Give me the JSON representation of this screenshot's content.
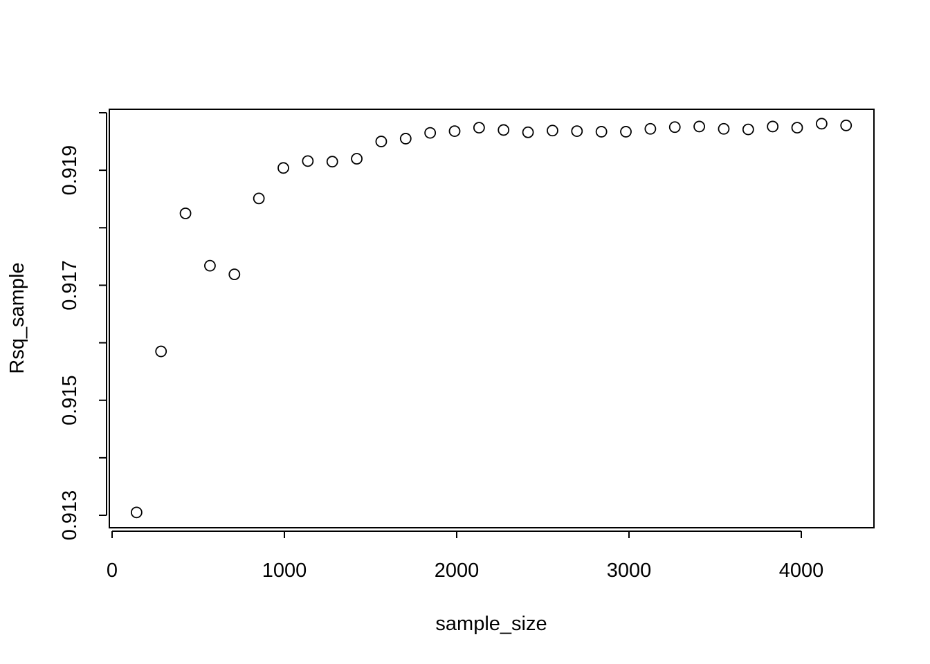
{
  "chart_data": {
    "type": "scatter",
    "title": "",
    "xlabel": "sample_size",
    "ylabel": "Rsq_sample",
    "xlim": [
      0,
      4400
    ],
    "ylim": [
      0.913,
      0.9202
    ],
    "x_ticks": [
      0,
      1000,
      2000,
      3000,
      4000
    ],
    "x_tick_labels": [
      "0",
      "1000",
      "2000",
      "3000",
      "4000"
    ],
    "y_ticks": [
      0.913,
      0.914,
      0.915,
      0.916,
      0.917,
      0.918,
      0.919,
      0.92
    ],
    "y_tick_labels": [
      "0.913",
      "",
      "0.915",
      "",
      "0.917",
      "",
      "0.919",
      ""
    ],
    "grid": false,
    "legend": "none",
    "point_style": "open-circle",
    "color": "#000000",
    "points": [
      {
        "x": 142,
        "y": 0.91305
      },
      {
        "x": 284,
        "y": 0.91585
      },
      {
        "x": 426,
        "y": 0.91825
      },
      {
        "x": 568,
        "y": 0.91734
      },
      {
        "x": 710,
        "y": 0.91719
      },
      {
        "x": 852,
        "y": 0.91851
      },
      {
        "x": 994,
        "y": 0.91904
      },
      {
        "x": 1136,
        "y": 0.91916
      },
      {
        "x": 1278,
        "y": 0.91915
      },
      {
        "x": 1420,
        "y": 0.9192
      },
      {
        "x": 1562,
        "y": 0.9195
      },
      {
        "x": 1704,
        "y": 0.91955
      },
      {
        "x": 1846,
        "y": 0.91965
      },
      {
        "x": 1988,
        "y": 0.91968
      },
      {
        "x": 2130,
        "y": 0.91974
      },
      {
        "x": 2272,
        "y": 0.9197
      },
      {
        "x": 2414,
        "y": 0.91966
      },
      {
        "x": 2556,
        "y": 0.91969
      },
      {
        "x": 2698,
        "y": 0.91968
      },
      {
        "x": 2840,
        "y": 0.91967
      },
      {
        "x": 2982,
        "y": 0.91967
      },
      {
        "x": 3124,
        "y": 0.91972
      },
      {
        "x": 3266,
        "y": 0.91975
      },
      {
        "x": 3408,
        "y": 0.91976
      },
      {
        "x": 3550,
        "y": 0.91972
      },
      {
        "x": 3692,
        "y": 0.91971
      },
      {
        "x": 3834,
        "y": 0.91976
      },
      {
        "x": 3976,
        "y": 0.91974
      },
      {
        "x": 4118,
        "y": 0.91981
      },
      {
        "x": 4260,
        "y": 0.91978
      }
    ]
  }
}
